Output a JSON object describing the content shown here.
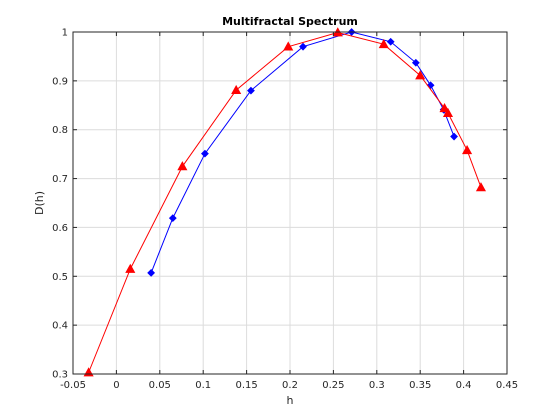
{
  "chart_data": {
    "type": "line",
    "title": "Multifractal Spectrum",
    "xlabel": "h",
    "ylabel": "D(h)",
    "xlim": [
      -0.05,
      0.45
    ],
    "ylim": [
      0.3,
      1.0
    ],
    "xticks": [
      "-0.05",
      "0",
      "0.05",
      "0.1",
      "0.15",
      "0.2",
      "0.25",
      "0.3",
      "0.35",
      "0.4",
      "0.45"
    ],
    "yticks": [
      "0.3",
      "0.4",
      "0.5",
      "0.6",
      "0.7",
      "0.8",
      "0.9",
      "1"
    ],
    "grid": true,
    "series": [
      {
        "color": "#0000ff",
        "marker": "diamond",
        "x": [
          0.04,
          0.065,
          0.102,
          0.155,
          0.215,
          0.271,
          0.316,
          0.345,
          0.362,
          0.377,
          0.389
        ],
        "y": [
          0.507,
          0.619,
          0.751,
          0.88,
          0.97,
          1.0,
          0.98,
          0.937,
          0.891,
          0.841,
          0.786
        ]
      },
      {
        "color": "#ff0000",
        "marker": "triangle",
        "x": [
          -0.032,
          0.016,
          0.076,
          0.138,
          0.198,
          0.255,
          0.308,
          0.35,
          0.378,
          0.382,
          0.404,
          0.42
        ],
        "y": [
          0.303,
          0.515,
          0.725,
          0.881,
          0.97,
          0.999,
          0.975,
          0.911,
          0.844,
          0.834,
          0.758,
          0.682
        ]
      }
    ]
  }
}
